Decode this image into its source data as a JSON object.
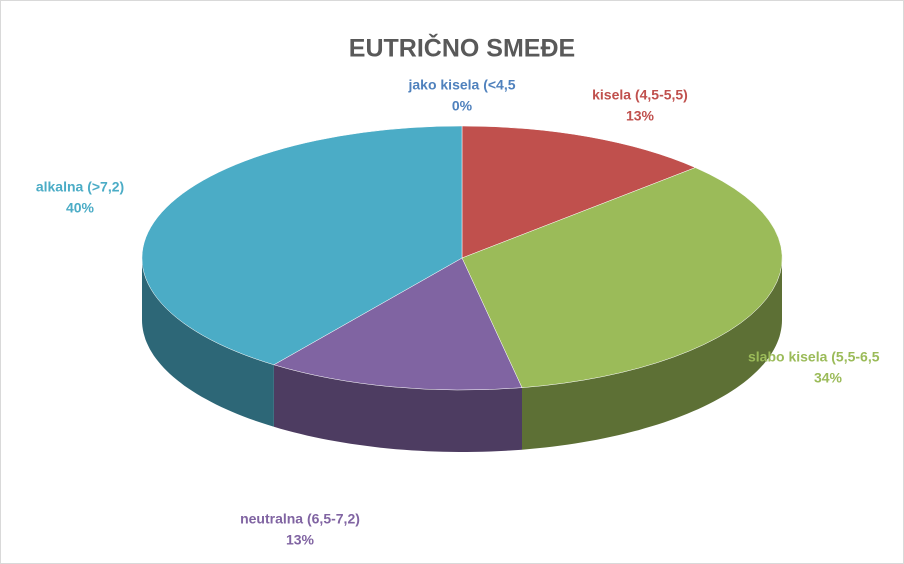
{
  "chart_data": {
    "type": "pie",
    "title": "EUTRIČNO SMEĐE",
    "categories": [
      "jako kisela (<4,5",
      "kisela (4,5-5,5)",
      "slabo kisela (5,5-6,5",
      "neutralna (6,5-7,2)",
      "alkalna (>7,2)"
    ],
    "values": [
      0,
      13,
      34,
      13,
      40
    ],
    "value_labels": [
      "0%",
      "13%",
      "34%",
      "13%",
      "40%"
    ],
    "colors": [
      "#4f81bd",
      "#c0504d",
      "#9bbb59",
      "#8064a2",
      "#4bacc6"
    ]
  }
}
